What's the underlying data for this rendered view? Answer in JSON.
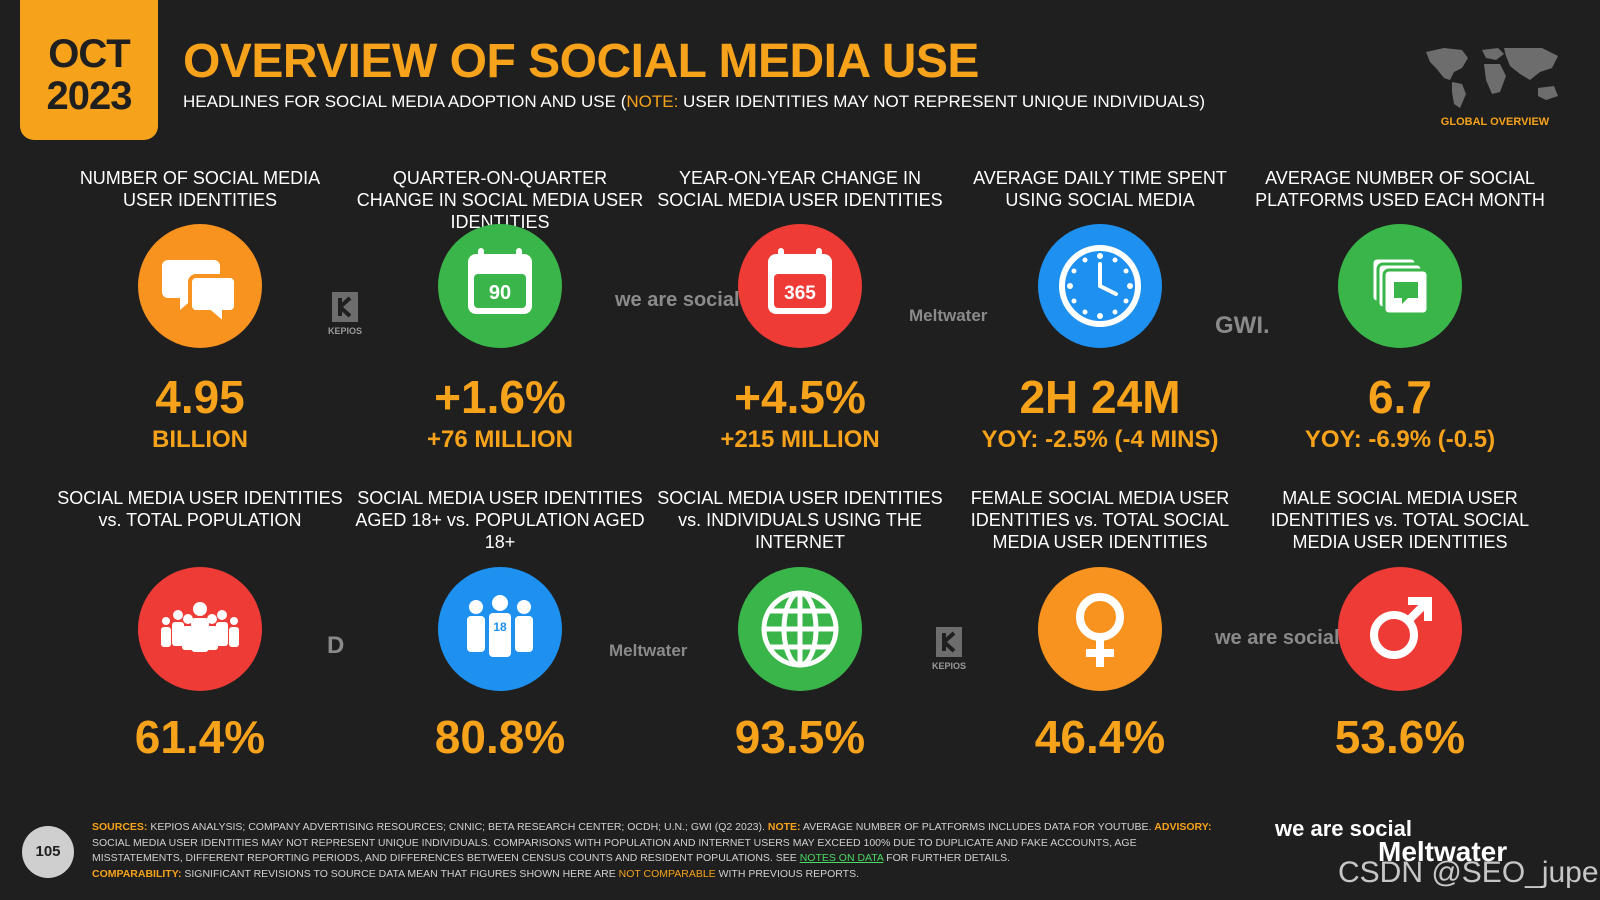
{
  "header": {
    "month": "OCT",
    "year": "2023",
    "title": "OVERVIEW OF SOCIAL MEDIA USE",
    "subtitle_pre": "HEADLINES FOR SOCIAL MEDIA ADOPTION AND USE (",
    "subtitle_note": "NOTE:",
    "subtitle_post": " USER IDENTITIES MAY NOT REPRESENT UNIQUE INDIVIDUALS)",
    "region_label": "GLOBAL OVERVIEW"
  },
  "colors": {
    "accent": "#f7a21b",
    "background": "#1f1f1f",
    "orange": "#f7931e",
    "green": "#3ab54a",
    "red": "#ef3b36",
    "blue": "#1e90f0"
  },
  "stats_row1": [
    {
      "label": "NUMBER OF SOCIAL MEDIA USER IDENTITIES",
      "icon": "chat-bubbles-icon",
      "value": "4.95",
      "sub": "BILLION"
    },
    {
      "label": "QUARTER-ON-QUARTER CHANGE IN SOCIAL MEDIA USER IDENTITIES",
      "icon": "calendar-90-icon",
      "icon_text": "90",
      "value": "+1.6%",
      "sub": "+76 MILLION"
    },
    {
      "label": "YEAR-ON-YEAR CHANGE IN SOCIAL MEDIA USER IDENTITIES",
      "icon": "calendar-365-icon",
      "icon_text": "365",
      "value": "+4.5%",
      "sub": "+215 MILLION"
    },
    {
      "label": "AVERAGE DAILY TIME SPENT USING SOCIAL MEDIA",
      "icon": "clock-icon",
      "value": "2H 24M",
      "sub": "YOY: -2.5% (-4 MINS)"
    },
    {
      "label": "AVERAGE NUMBER OF SOCIAL PLATFORMS USED EACH MONTH",
      "icon": "stacked-windows-icon",
      "value": "6.7",
      "sub": "YOY: -6.9% (-0.5)"
    }
  ],
  "stats_row2": [
    {
      "label": "SOCIAL MEDIA USER IDENTITIES vs. TOTAL POPULATION",
      "icon": "crowd-icon",
      "value": "61.4%"
    },
    {
      "label": "SOCIAL MEDIA USER IDENTITIES AGED 18+ vs. POPULATION AGED 18+",
      "icon": "adults-18-icon",
      "icon_text": "18",
      "value": "80.8%"
    },
    {
      "label": "SOCIAL MEDIA USER IDENTITIES vs. INDIVIDUALS USING THE INTERNET",
      "icon": "globe-icon",
      "value": "93.5%"
    },
    {
      "label": "FEMALE SOCIAL MEDIA USER IDENTITIES vs. TOTAL SOCIAL MEDIA USER IDENTITIES",
      "icon": "female-symbol-icon",
      "value": "46.4%"
    },
    {
      "label": "MALE SOCIAL MEDIA USER IDENTITIES vs. TOTAL SOCIAL MEDIA USER IDENTITIES",
      "icon": "male-symbol-icon",
      "value": "53.6%"
    }
  ],
  "sources_row1": [
    "KEPIOS",
    "we are social",
    "Meltwater",
    "GWI."
  ],
  "sources_row2": [
    "D",
    "Meltwater",
    "KEPIOS",
    "we are social"
  ],
  "footer": {
    "page": "105",
    "sources_key": "SOURCES:",
    "sources_text": " KEPIOS ANALYSIS; COMPANY ADVERTISING RESOURCES; CNNIC; BETA RESEARCH CENTER; OCDH; U.N.; GWI (Q2 2023). ",
    "note_key": "NOTE:",
    "note_text": " AVERAGE NUMBER OF PLATFORMS INCLUDES DATA FOR YOUTUBE. ",
    "advisory_key": "ADVISORY:",
    "advisory_text": " SOCIAL MEDIA USER IDENTITIES MAY NOT REPRESENT UNIQUE INDIVIDUALS. COMPARISONS WITH POPULATION AND INTERNET USERS MAY EXCEED 100% DUE TO DUPLICATE AND FAKE ACCOUNTS, AGE MISSTATEMENTS, DIFFERENT REPORTING PERIODS, AND DIFFERENCES BETWEEN CENSUS COUNTS AND RESIDENT POPULATIONS. SEE ",
    "notes_link": "NOTES ON DATA",
    "advisory_tail": " FOR FURTHER DETAILS.",
    "comp_key": "COMPARABILITY:",
    "comp_text": " SIGNIFICANT REVISIONS TO SOURCE DATA MEAN THAT FIGURES SHOWN HERE ARE ",
    "comp_highlight": "NOT COMPARABLE",
    "comp_tail": " WITH PREVIOUS REPORTS.",
    "brand1": "we are social",
    "brand2": "Meltwater",
    "watermark": "CSDN @SEO_juper"
  }
}
